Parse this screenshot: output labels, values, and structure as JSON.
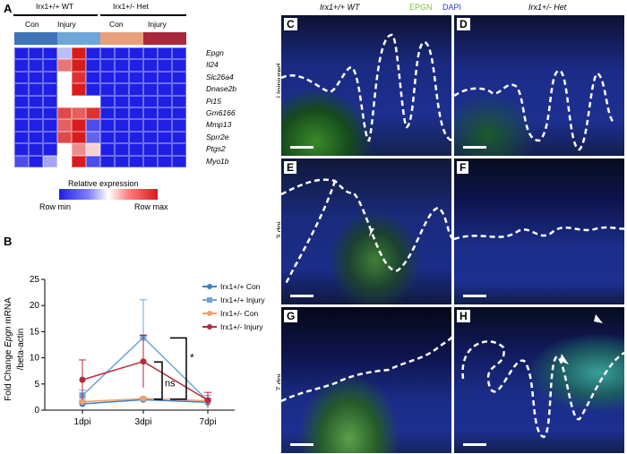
{
  "panels": {
    "A": "A",
    "B": "B",
    "C": "C",
    "D": "D",
    "E": "E",
    "F": "F",
    "G": "G",
    "H": "H"
  },
  "heatmap": {
    "group_wt": "Irx1+/+ WT",
    "group_het": "Irx1+/- Het",
    "sub_labels": [
      "Con",
      "Injury",
      "Con",
      "Injury"
    ],
    "genes": [
      "Epgn",
      "Il24",
      "Slc26a4",
      "Dnase2b",
      "Pi15",
      "Gm6166",
      "Mmp13",
      "Sprr2e",
      "Ptgs2",
      "Myo1b"
    ],
    "column_colors": [
      "#3f74b8",
      "#3f74b8",
      "#3f74b8",
      "#6fa6d8",
      "#6fa6d8",
      "#6fa6d8",
      "#e8a07c",
      "#e8a07c",
      "#e8a07c",
      "#a8283c",
      "#a8283c",
      "#a8283c"
    ],
    "values": [
      [
        0.0,
        0.0,
        0.0,
        0.35,
        1.0,
        0.0,
        0.0,
        0.0,
        0.0,
        0.0,
        0.0,
        0.0
      ],
      [
        0.0,
        0.0,
        0.0,
        0.8,
        1.0,
        0.0,
        0.0,
        0.0,
        0.0,
        0.0,
        0.0,
        0.0
      ],
      [
        0.0,
        0.0,
        0.0,
        0.5,
        0.95,
        0.0,
        0.0,
        0.0,
        0.0,
        0.0,
        0.0,
        0.0
      ],
      [
        0.0,
        0.0,
        0.0,
        0.5,
        1.0,
        0.0,
        0.0,
        0.0,
        0.0,
        0.0,
        0.0,
        0.0
      ],
      [
        0.0,
        0.0,
        0.0,
        0.5,
        0.5,
        0.5,
        0.0,
        0.0,
        0.0,
        0.0,
        0.0,
        0.0
      ],
      [
        0.0,
        0.0,
        0.0,
        0.9,
        0.85,
        0.95,
        0.0,
        0.0,
        0.0,
        0.0,
        0.0,
        0.0
      ],
      [
        0.0,
        0.0,
        0.0,
        0.85,
        1.0,
        0.1,
        0.0,
        0.0,
        0.0,
        0.0,
        0.0,
        0.0
      ],
      [
        0.0,
        0.0,
        0.0,
        0.9,
        1.0,
        0.15,
        0.0,
        0.0,
        0.0,
        0.0,
        0.0,
        0.0
      ],
      [
        0.0,
        0.0,
        0.0,
        0.5,
        0.75,
        0.6,
        0.0,
        0.0,
        0.0,
        0.0,
        0.0,
        0.0
      ],
      [
        0.1,
        0.0,
        0.3,
        0.5,
        1.0,
        0.1,
        0.0,
        0.0,
        0.0,
        0.0,
        0.0,
        0.0
      ]
    ],
    "legend_title": "Relative expression",
    "legend_min": "Row min",
    "legend_max": "Row max"
  },
  "chart_data": {
    "type": "line",
    "ylabel_prefix": "Fold Change ",
    "ylabel_gene": "Epgn",
    "ylabel_suffix": " mRNA",
    "ylabel_line2": "/beta-actin",
    "x": [
      "1dpi",
      "3dpi",
      "7dpi"
    ],
    "ylim": [
      0,
      25
    ],
    "yticks": [
      0,
      5,
      10,
      15,
      20,
      25
    ],
    "series": [
      {
        "name": "Irx1+/+ Con",
        "color": "#3d7fc1",
        "marker": "circle",
        "values": [
          1.2,
          2.0,
          1.5
        ],
        "err": [
          0.3,
          0.3,
          0.3
        ]
      },
      {
        "name": "Irx1+/+ Injury",
        "color": "#6fa4d6",
        "marker": "square",
        "values": [
          2.8,
          13.9,
          1.8
        ],
        "err": [
          1.0,
          7.2,
          1.0
        ]
      },
      {
        "name": "Irx1+/- Con",
        "color": "#f0a070",
        "marker": "circle",
        "values": [
          1.6,
          2.2,
          1.8
        ],
        "err": [
          0.3,
          0.3,
          0.3
        ]
      },
      {
        "name": "Irx1+/- Injury",
        "color": "#b52a3e",
        "marker": "circle",
        "values": [
          5.8,
          9.3,
          1.9
        ],
        "err": [
          3.8,
          5.0,
          1.5
        ]
      }
    ],
    "annotations": [
      "ns",
      "*"
    ]
  },
  "micro": {
    "header_wt": "Irx1+/+ WT",
    "header_epgn": "EPGN",
    "header_dapi": "DAPI",
    "header_het": "Irx1+/- Het",
    "rows": [
      "Uninjured",
      "3 dpi",
      "7 dpi"
    ]
  }
}
